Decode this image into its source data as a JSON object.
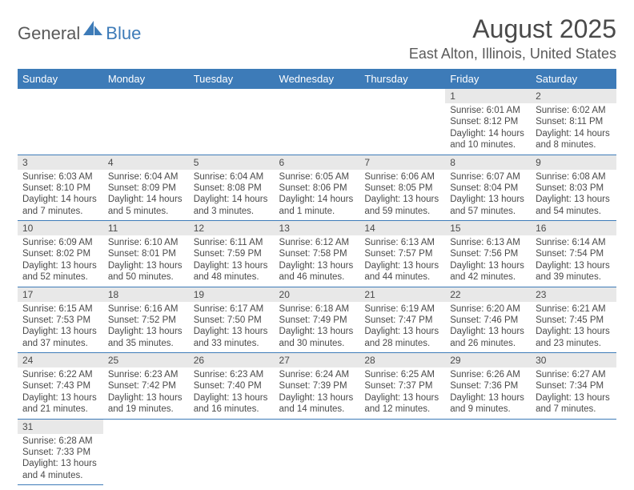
{
  "logo": {
    "text1": "General",
    "text2": "Blue"
  },
  "title": "August 2025",
  "location": "East Alton, Illinois, United States",
  "colors": {
    "header_bg": "#3d7bb8",
    "header_fg": "#ffffff",
    "daynum_bg": "#e8e8e8",
    "row_border": "#3d7bb8",
    "text": "#4a4a4a",
    "logo_blue": "#3d7bb8",
    "logo_gray": "#5a5a5a"
  },
  "day_headers": [
    "Sunday",
    "Monday",
    "Tuesday",
    "Wednesday",
    "Thursday",
    "Friday",
    "Saturday"
  ],
  "weeks": [
    [
      null,
      null,
      null,
      null,
      null,
      {
        "n": "1",
        "sunrise": "6:01 AM",
        "sunset": "8:12 PM",
        "day_h": "14",
        "day_m": "10"
      },
      {
        "n": "2",
        "sunrise": "6:02 AM",
        "sunset": "8:11 PM",
        "day_h": "14",
        "day_m": "8"
      }
    ],
    [
      {
        "n": "3",
        "sunrise": "6:03 AM",
        "sunset": "8:10 PM",
        "day_h": "14",
        "day_m": "7"
      },
      {
        "n": "4",
        "sunrise": "6:04 AM",
        "sunset": "8:09 PM",
        "day_h": "14",
        "day_m": "5"
      },
      {
        "n": "5",
        "sunrise": "6:04 AM",
        "sunset": "8:08 PM",
        "day_h": "14",
        "day_m": "3"
      },
      {
        "n": "6",
        "sunrise": "6:05 AM",
        "sunset": "8:06 PM",
        "day_h": "14",
        "day_m": "1"
      },
      {
        "n": "7",
        "sunrise": "6:06 AM",
        "sunset": "8:05 PM",
        "day_h": "13",
        "day_m": "59"
      },
      {
        "n": "8",
        "sunrise": "6:07 AM",
        "sunset": "8:04 PM",
        "day_h": "13",
        "day_m": "57"
      },
      {
        "n": "9",
        "sunrise": "6:08 AM",
        "sunset": "8:03 PM",
        "day_h": "13",
        "day_m": "54"
      }
    ],
    [
      {
        "n": "10",
        "sunrise": "6:09 AM",
        "sunset": "8:02 PM",
        "day_h": "13",
        "day_m": "52"
      },
      {
        "n": "11",
        "sunrise": "6:10 AM",
        "sunset": "8:01 PM",
        "day_h": "13",
        "day_m": "50"
      },
      {
        "n": "12",
        "sunrise": "6:11 AM",
        "sunset": "7:59 PM",
        "day_h": "13",
        "day_m": "48"
      },
      {
        "n": "13",
        "sunrise": "6:12 AM",
        "sunset": "7:58 PM",
        "day_h": "13",
        "day_m": "46"
      },
      {
        "n": "14",
        "sunrise": "6:13 AM",
        "sunset": "7:57 PM",
        "day_h": "13",
        "day_m": "44"
      },
      {
        "n": "15",
        "sunrise": "6:13 AM",
        "sunset": "7:56 PM",
        "day_h": "13",
        "day_m": "42"
      },
      {
        "n": "16",
        "sunrise": "6:14 AM",
        "sunset": "7:54 PM",
        "day_h": "13",
        "day_m": "39"
      }
    ],
    [
      {
        "n": "17",
        "sunrise": "6:15 AM",
        "sunset": "7:53 PM",
        "day_h": "13",
        "day_m": "37"
      },
      {
        "n": "18",
        "sunrise": "6:16 AM",
        "sunset": "7:52 PM",
        "day_h": "13",
        "day_m": "35"
      },
      {
        "n": "19",
        "sunrise": "6:17 AM",
        "sunset": "7:50 PM",
        "day_h": "13",
        "day_m": "33"
      },
      {
        "n": "20",
        "sunrise": "6:18 AM",
        "sunset": "7:49 PM",
        "day_h": "13",
        "day_m": "30"
      },
      {
        "n": "21",
        "sunrise": "6:19 AM",
        "sunset": "7:47 PM",
        "day_h": "13",
        "day_m": "28"
      },
      {
        "n": "22",
        "sunrise": "6:20 AM",
        "sunset": "7:46 PM",
        "day_h": "13",
        "day_m": "26"
      },
      {
        "n": "23",
        "sunrise": "6:21 AM",
        "sunset": "7:45 PM",
        "day_h": "13",
        "day_m": "23"
      }
    ],
    [
      {
        "n": "24",
        "sunrise": "6:22 AM",
        "sunset": "7:43 PM",
        "day_h": "13",
        "day_m": "21"
      },
      {
        "n": "25",
        "sunrise": "6:23 AM",
        "sunset": "7:42 PM",
        "day_h": "13",
        "day_m": "19"
      },
      {
        "n": "26",
        "sunrise": "6:23 AM",
        "sunset": "7:40 PM",
        "day_h": "13",
        "day_m": "16"
      },
      {
        "n": "27",
        "sunrise": "6:24 AM",
        "sunset": "7:39 PM",
        "day_h": "13",
        "day_m": "14"
      },
      {
        "n": "28",
        "sunrise": "6:25 AM",
        "sunset": "7:37 PM",
        "day_h": "13",
        "day_m": "12"
      },
      {
        "n": "29",
        "sunrise": "6:26 AM",
        "sunset": "7:36 PM",
        "day_h": "13",
        "day_m": "9"
      },
      {
        "n": "30",
        "sunrise": "6:27 AM",
        "sunset": "7:34 PM",
        "day_h": "13",
        "day_m": "7"
      }
    ],
    [
      {
        "n": "31",
        "sunrise": "6:28 AM",
        "sunset": "7:33 PM",
        "day_h": "13",
        "day_m": "4"
      },
      null,
      null,
      null,
      null,
      null,
      null
    ]
  ],
  "labels": {
    "sunrise": "Sunrise: ",
    "sunset": "Sunset: ",
    "daylight_pre": "Daylight: ",
    "hours_word": " hours",
    "and_word": "and ",
    "minutes_word": " minutes."
  }
}
